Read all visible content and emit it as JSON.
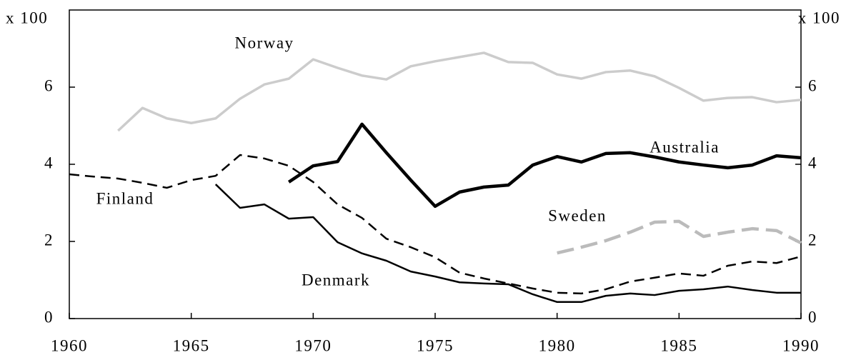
{
  "chart_data": {
    "type": "line",
    "y_label": "x 100",
    "x": [
      1960,
      1961,
      1962,
      1963,
      1964,
      1965,
      1966,
      1967,
      1968,
      1969,
      1970,
      1971,
      1972,
      1973,
      1974,
      1975,
      1976,
      1977,
      1978,
      1979,
      1980,
      1981,
      1982,
      1983,
      1984,
      1985,
      1986,
      1987,
      1988,
      1989,
      1990
    ],
    "series": [
      {
        "name": "Norway",
        "color": "#cccccc",
        "style": "solid",
        "values": [
          null,
          null,
          4.87,
          5.46,
          5.19,
          5.07,
          5.19,
          5.7,
          6.07,
          6.22,
          6.72,
          6.5,
          6.3,
          6.2,
          6.54,
          6.67,
          6.78,
          6.89,
          6.65,
          6.63,
          6.33,
          6.22,
          6.39,
          6.43,
          6.28,
          5.98,
          5.65,
          5.72,
          5.74,
          5.61,
          5.67
        ]
      },
      {
        "name": "Australia",
        "color": "#000000",
        "style": "solid",
        "values": [
          null,
          null,
          null,
          null,
          null,
          null,
          null,
          null,
          null,
          3.54,
          3.96,
          4.07,
          5.04,
          4.3,
          3.59,
          2.91,
          3.28,
          3.41,
          3.46,
          3.98,
          4.2,
          4.06,
          4.28,
          4.3,
          4.19,
          4.06,
          3.98,
          3.91,
          3.98,
          4.22,
          4.17
        ]
      },
      {
        "name": "Finland",
        "color": "#000000",
        "style": "dashed",
        "values": [
          3.74,
          3.68,
          3.63,
          3.52,
          3.39,
          3.59,
          3.7,
          4.24,
          4.15,
          3.96,
          3.54,
          2.96,
          2.61,
          2.07,
          1.85,
          1.59,
          1.19,
          1.04,
          0.91,
          0.78,
          0.67,
          0.65,
          0.76,
          0.96,
          1.06,
          1.17,
          1.11,
          1.37,
          1.48,
          1.44,
          1.61
        ]
      },
      {
        "name": "Sweden",
        "color": "#bbbbbb",
        "style": "dashed",
        "values": [
          null,
          null,
          null,
          null,
          null,
          null,
          null,
          null,
          null,
          null,
          null,
          null,
          null,
          null,
          null,
          null,
          null,
          null,
          null,
          null,
          1.7,
          1.85,
          2.02,
          2.24,
          2.5,
          2.52,
          2.13,
          2.24,
          2.33,
          2.28,
          1.96
        ]
      },
      {
        "name": "Denmark",
        "color": "#000000",
        "style": "solid",
        "values": [
          null,
          null,
          null,
          null,
          null,
          null,
          3.48,
          2.87,
          2.96,
          2.59,
          2.63,
          1.98,
          1.69,
          1.5,
          1.22,
          1.09,
          0.94,
          0.91,
          0.89,
          0.63,
          0.43,
          0.43,
          0.59,
          0.65,
          0.61,
          0.72,
          0.76,
          0.83,
          0.74,
          0.67,
          0.67
        ]
      }
    ],
    "xlim": [
      1960,
      1990
    ],
    "xticks": [
      1960,
      1965,
      1970,
      1975,
      1980,
      1985,
      1990
    ],
    "ylim": [
      0,
      8
    ],
    "yticks": [
      0,
      2,
      4,
      6
    ]
  }
}
